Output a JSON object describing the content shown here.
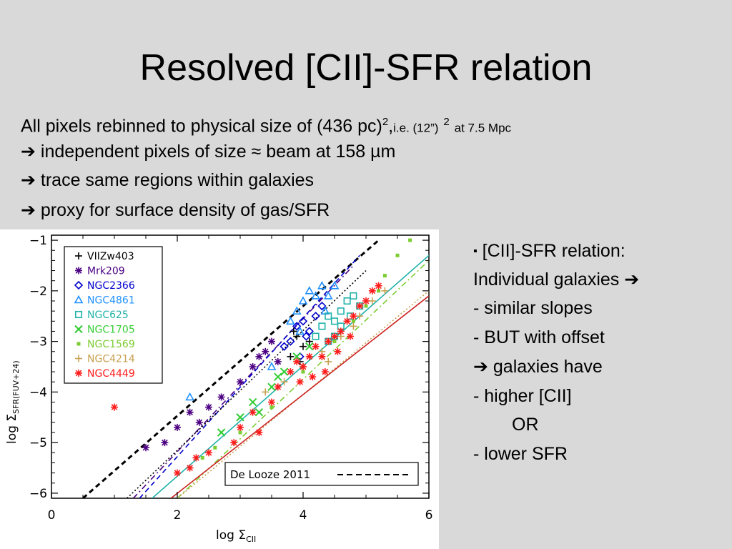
{
  "slide": {
    "title": "Resolved [CII]-SFR relation",
    "bullet1_main": "All pixels rebinned to physical size of (436 pc)",
    "bullet1_sup": "2",
    "bullet1_comma": ",",
    "bullet1_small_a": "i.e. (12”)",
    "bullet1_small_sup": "2",
    "bullet1_small_b": "at 7.5 Mpc",
    "arrow": "➔",
    "bullet2": "independent pixels of size ≈ beam at 158 µm",
    "bullet3": "trace same regions within galaxies",
    "bullet4": "proxy for surface density of gas/SFR",
    "square_bullet": "▪",
    "right_lines": [
      "[CII]-SFR relation:",
      "Individual galaxies",
      "- similar slopes",
      "- BUT with offset",
      "galaxies have",
      "- higher [CII]",
      "OR",
      "- lower SFR"
    ]
  },
  "chart_data": {
    "type": "scatter",
    "xlabel": "log Σ",
    "xlabel_sub": "CII",
    "ylabel": "log Σ",
    "ylabel_sub": "SFR(FUV+24)",
    "xlim": [
      0,
      6
    ],
    "ylim": [
      -6.1,
      -0.9
    ],
    "xticks": [
      "0",
      "2",
      "4",
      "6"
    ],
    "yticks": [
      "−1",
      "−2",
      "−3",
      "−4",
      "−5",
      "−6"
    ],
    "legend_position": "top-left",
    "annotation": "De Looze 2011",
    "series": [
      {
        "name": "VIIZw403",
        "marker": "+",
        "color": "#000000",
        "points": [
          [
            3.9,
            -2.9
          ],
          [
            4.0,
            -3.1
          ],
          [
            3.8,
            -3.3
          ],
          [
            4.1,
            -3.0
          ],
          [
            3.95,
            -3.4
          ],
          [
            3.85,
            -2.8
          ]
        ]
      },
      {
        "name": "Mrk209",
        "marker": "*",
        "color": "#4b0082",
        "points": [
          [
            1.5,
            -5.1
          ],
          [
            1.8,
            -5.0
          ],
          [
            2.0,
            -4.7
          ],
          [
            2.2,
            -4.4
          ],
          [
            2.5,
            -4.3
          ],
          [
            2.7,
            -4.1
          ],
          [
            3.0,
            -3.8
          ],
          [
            3.2,
            -3.5
          ],
          [
            3.4,
            -3.2
          ],
          [
            3.5,
            -3.0
          ],
          [
            3.6,
            -3.4
          ],
          [
            3.3,
            -3.3
          ],
          [
            2.35,
            -4.6
          ]
        ]
      },
      {
        "name": "NGC2366",
        "marker": "◇",
        "color": "#0000cd",
        "points": [
          [
            3.7,
            -3.1
          ],
          [
            3.8,
            -3.0
          ],
          [
            3.9,
            -2.7
          ],
          [
            4.0,
            -2.6
          ],
          [
            4.1,
            -2.8
          ],
          [
            4.2,
            -2.5
          ],
          [
            4.3,
            -2.3
          ],
          [
            3.95,
            -3.3
          ],
          [
            4.05,
            -2.9
          ]
        ]
      },
      {
        "name": "NGC4861",
        "marker": "△",
        "color": "#1e90ff",
        "points": [
          [
            2.2,
            -4.1
          ],
          [
            3.5,
            -3.5
          ],
          [
            3.8,
            -2.6
          ],
          [
            3.9,
            -2.4
          ],
          [
            4.0,
            -2.2
          ],
          [
            4.1,
            -2.0
          ],
          [
            4.2,
            -2.1
          ],
          [
            4.3,
            -1.9
          ],
          [
            4.4,
            -2.1
          ],
          [
            4.5,
            -1.9
          ],
          [
            3.95,
            -2.8
          ],
          [
            4.35,
            -2.4
          ]
        ]
      },
      {
        "name": "NGC625",
        "marker": "□",
        "color": "#20b2aa",
        "points": [
          [
            4.3,
            -2.7
          ],
          [
            4.4,
            -2.5
          ],
          [
            4.5,
            -2.6
          ],
          [
            4.6,
            -2.4
          ],
          [
            4.7,
            -2.2
          ],
          [
            4.8,
            -2.1
          ],
          [
            4.9,
            -2.3
          ],
          [
            4.5,
            -2.9
          ],
          [
            4.6,
            -2.7
          ],
          [
            4.4,
            -3.0
          ],
          [
            4.2,
            -2.9
          ],
          [
            4.75,
            -2.5
          ]
        ]
      },
      {
        "name": "NGC1705",
        "marker": "×",
        "color": "#32cd32",
        "points": [
          [
            2.7,
            -4.8
          ],
          [
            3.0,
            -4.5
          ],
          [
            3.2,
            -4.2
          ],
          [
            3.5,
            -3.9
          ],
          [
            3.7,
            -3.6
          ],
          [
            3.9,
            -3.3
          ],
          [
            4.1,
            -3.1
          ],
          [
            3.3,
            -4.4
          ],
          [
            3.6,
            -3.7
          ]
        ]
      },
      {
        "name": "NGC1569",
        "marker": "■",
        "color": "#7ccd32",
        "points": [
          [
            2.4,
            -5.3
          ],
          [
            2.6,
            -5.1
          ],
          [
            3.0,
            -4.8
          ],
          [
            3.5,
            -4.3
          ],
          [
            4.0,
            -3.6
          ],
          [
            4.5,
            -3.0
          ],
          [
            5.0,
            -2.3
          ],
          [
            5.3,
            -1.7
          ],
          [
            5.5,
            -1.3
          ],
          [
            5.7,
            -1.0
          ],
          [
            5.2,
            -2.0
          ],
          [
            4.8,
            -2.6
          ]
        ]
      },
      {
        "name": "NGC4214",
        "marker": "+",
        "color": "#c8a050",
        "points": [
          [
            3.4,
            -4.0
          ],
          [
            3.7,
            -3.8
          ],
          [
            4.0,
            -3.5
          ],
          [
            4.3,
            -3.2
          ],
          [
            4.6,
            -2.9
          ],
          [
            4.9,
            -2.5
          ],
          [
            5.1,
            -2.2
          ],
          [
            5.3,
            -2.0
          ],
          [
            4.4,
            -3.4
          ],
          [
            4.8,
            -2.7
          ]
        ]
      },
      {
        "name": "NGC4449",
        "marker": "*",
        "color": "#ff1a1a",
        "points": [
          [
            1.0,
            -4.3
          ],
          [
            2.0,
            -5.6
          ],
          [
            2.2,
            -5.5
          ],
          [
            2.3,
            -5.3
          ],
          [
            2.5,
            -5.2
          ],
          [
            2.9,
            -5.0
          ],
          [
            3.0,
            -4.7
          ],
          [
            3.2,
            -4.4
          ],
          [
            3.3,
            -4.8
          ],
          [
            3.5,
            -4.2
          ],
          [
            3.6,
            -3.9
          ],
          [
            3.8,
            -3.6
          ],
          [
            3.9,
            -3.4
          ],
          [
            4.0,
            -3.5
          ],
          [
            4.1,
            -3.3
          ],
          [
            4.2,
            -3.1
          ],
          [
            4.3,
            -3.3
          ],
          [
            4.4,
            -3.0
          ],
          [
            4.5,
            -2.9
          ],
          [
            4.6,
            -2.8
          ],
          [
            4.7,
            -2.6
          ],
          [
            4.8,
            -2.5
          ],
          [
            4.9,
            -2.3
          ],
          [
            5.0,
            -2.2
          ],
          [
            5.1,
            -2.0
          ],
          [
            5.2,
            -1.9
          ],
          [
            4.35,
            -3.6
          ],
          [
            4.55,
            -3.2
          ],
          [
            4.75,
            -2.9
          ],
          [
            3.95,
            -3.8
          ],
          [
            4.15,
            -3.7
          ]
        ]
      }
    ],
    "lines": [
      {
        "name": "De Looze 2011",
        "style": "dashed",
        "color": "#000000",
        "x": [
          0.5,
          5.2
        ],
        "y": [
          -6.1,
          -1.0
        ]
      },
      {
        "name": "Mrk209 fit",
        "style": "dashdot",
        "color": "#4b0082",
        "x": [
          1.3,
          4.8
        ],
        "y": [
          -6.1,
          -1.5
        ]
      },
      {
        "name": "NGC2366 fit",
        "style": "dashed",
        "color": "#0000cd",
        "x": [
          1.4,
          4.9
        ],
        "y": [
          -6.1,
          -1.3
        ]
      },
      {
        "name": "VIIZw403 fit",
        "style": "dotted",
        "color": "#000000",
        "x": [
          1.2,
          5.0
        ],
        "y": [
          -6.1,
          -1.6
        ]
      },
      {
        "name": "NGC625 fit",
        "style": "solid",
        "color": "#20b2aa",
        "x": [
          1.6,
          6.0
        ],
        "y": [
          -6.1,
          -1.3
        ]
      },
      {
        "name": "NGC1569 fit",
        "style": "dashdot",
        "color": "#7ccd32",
        "x": [
          2.0,
          6.0
        ],
        "y": [
          -6.1,
          -1.4
        ]
      },
      {
        "name": "NGC4214 fit",
        "style": "dotted",
        "color": "#c8a050",
        "x": [
          2.0,
          6.0
        ],
        "y": [
          -6.1,
          -2.0
        ]
      },
      {
        "name": "NGC4449 fit",
        "style": "solid",
        "color": "#cc2222",
        "x": [
          1.9,
          6.0
        ],
        "y": [
          -6.1,
          -2.1
        ]
      }
    ]
  }
}
